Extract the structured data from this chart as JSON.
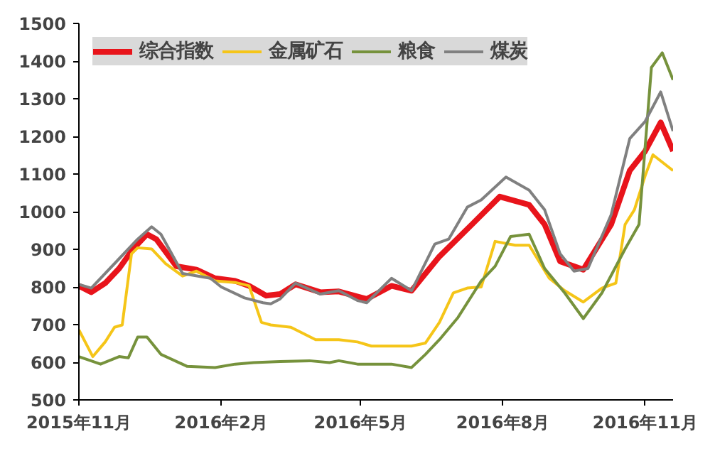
{
  "chart_data": {
    "type": "line",
    "xlim": [
      "2015-11-01",
      "2016-11-19"
    ],
    "xticks": [
      {
        "value": "2015-11",
        "label": "2015年11月"
      },
      {
        "value": "2016-02",
        "label": "2016年2月"
      },
      {
        "value": "2016-05",
        "label": "2016年5月"
      },
      {
        "value": "2016-08",
        "label": "2016年8月"
      },
      {
        "value": "2016-11",
        "label": "2016年11月"
      }
    ],
    "ylim": [
      500,
      1500
    ],
    "yticks": [
      500,
      600,
      700,
      800,
      900,
      1000,
      1100,
      1200,
      1300,
      1400,
      1500
    ],
    "grid": false,
    "legend": "top left",
    "line_style": "solid",
    "marker": "none",
    "series": [
      {
        "name": "综合指数",
        "color": "#e8141b",
        "x": [
          "2015-11-01",
          "2015-11-09",
          "2015-11-18",
          "2015-11-27",
          "2015-12-06",
          "2015-12-15",
          "2015-12-21",
          "2016-01-03",
          "2016-01-16",
          "2016-01-28",
          "2016-02-10",
          "2016-02-19",
          "2016-03-01",
          "2016-03-10",
          "2016-03-20",
          "2016-04-05",
          "2016-04-17",
          "2016-05-05",
          "2016-05-21",
          "2016-06-03",
          "2016-06-21",
          "2016-07-12",
          "2016-07-30",
          "2016-08-18",
          "2016-08-28",
          "2016-09-07",
          "2016-09-22",
          "2016-10-10",
          "2016-10-22",
          "2016-11-01",
          "2016-11-11",
          "2016-11-19"
        ],
        "values": [
          803,
          786,
          810,
          849,
          901,
          940,
          927,
          855,
          846,
          823,
          816,
          803,
          777,
          781,
          807,
          786,
          788,
          768,
          803,
          790,
          881,
          966,
          1040,
          1018,
          966,
          868,
          846,
          966,
          1109,
          1161,
          1237,
          1161
        ]
      },
      {
        "name": "金属矿石",
        "color": "#f5c518",
        "x": [
          "2015-11-01",
          "2015-11-10",
          "2015-11-18",
          "2015-11-24",
          "2015-11-29",
          "2015-12-05",
          "2015-12-09",
          "2015-12-18",
          "2015-12-27",
          "2016-01-07",
          "2016-01-16",
          "2016-01-28",
          "2016-02-10",
          "2016-02-19",
          "2016-02-27",
          "2016-03-04",
          "2016-03-17",
          "2016-04-02",
          "2016-04-17",
          "2016-04-29",
          "2016-05-08",
          "2016-06-03",
          "2016-06-12",
          "2016-06-21",
          "2016-06-30",
          "2016-07-09",
          "2016-07-18",
          "2016-07-27",
          "2016-08-09",
          "2016-08-18",
          "2016-08-31",
          "2016-09-10",
          "2016-09-22",
          "2016-10-04",
          "2016-10-13",
          "2016-10-19",
          "2016-10-25",
          "2016-11-01",
          "2016-11-06",
          "2016-11-19"
        ],
        "values": [
          686,
          615,
          654,
          693,
          699,
          888,
          904,
          901,
          862,
          829,
          842,
          816,
          812,
          803,
          706,
          699,
          693,
          660,
          660,
          654,
          643,
          643,
          651,
          706,
          784,
          797,
          800,
          921,
          911,
          911,
          823,
          790,
          760,
          797,
          810,
          966,
          1005,
          1096,
          1151,
          1109
        ]
      },
      {
        "name": "粮食",
        "color": "#76923c",
        "x": [
          "2015-11-01",
          "2015-11-15",
          "2015-11-27",
          "2015-12-03",
          "2015-12-09",
          "2015-12-15",
          "2015-12-24",
          "2016-01-10",
          "2016-01-28",
          "2016-02-10",
          "2016-02-22",
          "2016-03-10",
          "2016-03-29",
          "2016-04-11",
          "2016-04-17",
          "2016-04-29",
          "2016-05-05",
          "2016-05-21",
          "2016-06-03",
          "2016-06-12",
          "2016-06-21",
          "2016-07-03",
          "2016-07-18",
          "2016-07-27",
          "2016-08-06",
          "2016-08-18",
          "2016-08-28",
          "2016-09-10",
          "2016-09-22",
          "2016-10-04",
          "2016-10-19",
          "2016-10-28",
          "2016-11-05",
          "2016-11-12",
          "2016-11-19"
        ],
        "values": [
          615,
          595,
          615,
          612,
          667,
          667,
          621,
          589,
          586,
          595,
          599,
          602,
          604,
          599,
          604,
          595,
          595,
          595,
          586,
          621,
          660,
          719,
          816,
          855,
          934,
          940,
          849,
          784,
          716,
          784,
          901,
          966,
          1383,
          1422,
          1350
        ]
      },
      {
        "name": "煤炭",
        "color": "#808080",
        "x": [
          "2015-11-01",
          "2015-11-09",
          "2015-11-27",
          "2015-12-09",
          "2015-12-18",
          "2015-12-24",
          "2016-01-07",
          "2016-01-25",
          "2016-02-01",
          "2016-02-16",
          "2016-02-28",
          "2016-03-04",
          "2016-03-10",
          "2016-03-20",
          "2016-04-05",
          "2016-04-17",
          "2016-04-29",
          "2016-05-05",
          "2016-05-21",
          "2016-06-03",
          "2016-06-18",
          "2016-06-27",
          "2016-07-09",
          "2016-07-18",
          "2016-08-03",
          "2016-08-18",
          "2016-08-28",
          "2016-09-07",
          "2016-09-16",
          "2016-09-25",
          "2016-10-10",
          "2016-10-22",
          "2016-11-01",
          "2016-11-11",
          "2016-11-19"
        ],
        "values": [
          807,
          797,
          875,
          927,
          960,
          940,
          836,
          823,
          800,
          771,
          758,
          755,
          768,
          810,
          781,
          790,
          764,
          758,
          823,
          790,
          914,
          927,
          1012,
          1031,
          1092,
          1057,
          1005,
          888,
          842,
          849,
          992,
          1194,
          1240,
          1318,
          1214
        ]
      }
    ]
  }
}
